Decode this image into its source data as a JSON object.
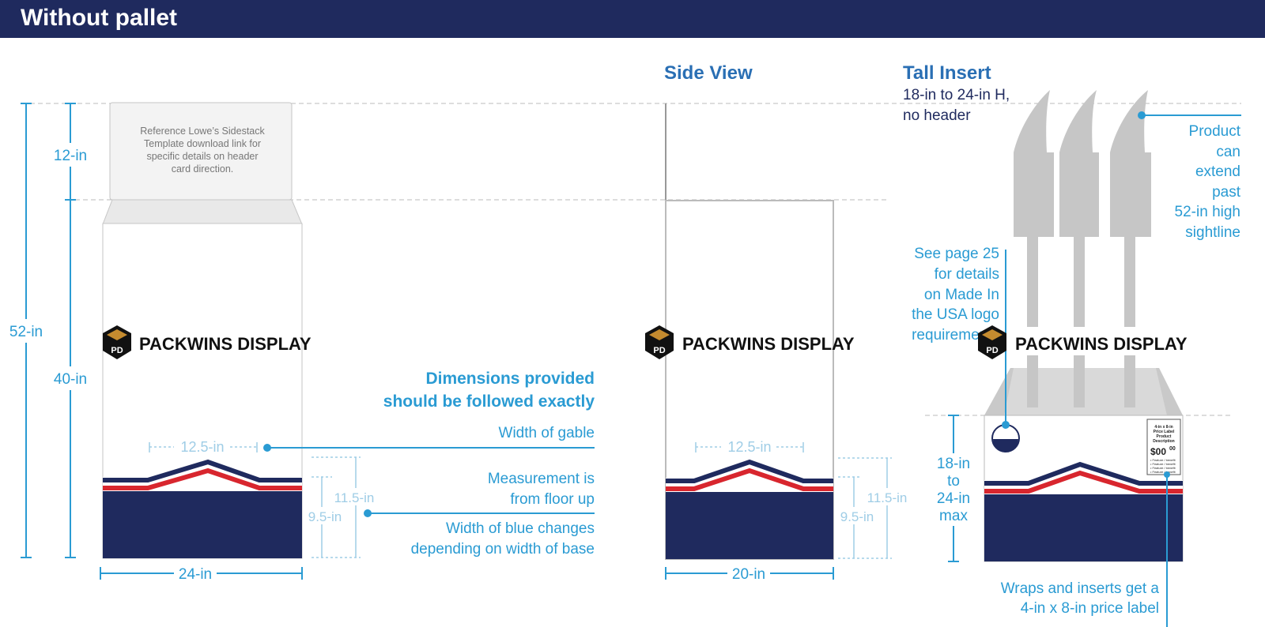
{
  "header": {
    "title": "Without pallet"
  },
  "colors": {
    "navy": "#1f2a5e",
    "blue": "#2a9bd3",
    "light_blue": "#9fcde6",
    "red": "#d8262e",
    "gray": "#c6c6c6"
  },
  "front": {
    "height_total": "52-in",
    "height_header": "12-in",
    "height_body": "40-in",
    "header_card_note": [
      "Reference Lowe’s Sidestack",
      "Template download link for",
      "specific details on header",
      "card direction."
    ],
    "logo_text": "PACKWINS DISPLAY",
    "logo_mark": "PD",
    "gable_width": "12.5-in",
    "height_outer": "11.5-in",
    "height_inner": "9.5-in",
    "base_width": "24-in"
  },
  "callouts": {
    "headline": [
      "Dimensions provided",
      "should be followed exactly"
    ],
    "gable": "Width of gable",
    "measurement": [
      "Measurement is",
      "from floor up"
    ],
    "blue_width": [
      "Width of blue changes",
      "depending on width of base"
    ]
  },
  "side": {
    "title": "Side View",
    "logo_text": "PACKWINS DISPLAY",
    "logo_mark": "PD",
    "gable_width": "12.5-in",
    "height_outer": "11.5-in",
    "height_inner": "9.5-in",
    "base_width": "20-in"
  },
  "insert": {
    "title": "Tall Insert",
    "subtitle": [
      "18-in to 24-in H,",
      "no header"
    ],
    "product_note": [
      "Product",
      "can",
      "extend",
      "past",
      "52-in high",
      "sightline"
    ],
    "made_in_note": [
      "See page 25",
      "for details",
      "on Made In",
      "the USA logo",
      "requirements"
    ],
    "logo_text": "PACKWINS DISPLAY",
    "logo_mark": "PD",
    "height_range": [
      "18-in",
      "to",
      "24-in",
      "max"
    ],
    "usa_badge": "USA",
    "price_label_title": [
      "4-in x 8-in",
      "Price Label",
      "Product",
      "Description"
    ],
    "price_label_price": "$00",
    "price_label_cents": "00",
    "price_label_lines": [
      "• Feature / benefit",
      "• Feature / benefit",
      "• Feature / benefit",
      "• Feature / benefit"
    ],
    "price_note": [
      "Wraps and inserts get a",
      "4-in x 8-in price label"
    ]
  }
}
